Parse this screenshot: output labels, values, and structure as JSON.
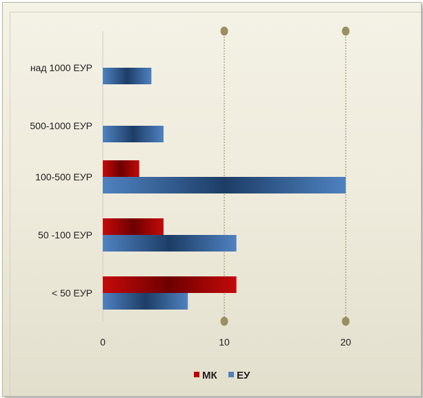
{
  "chart_data": {
    "type": "bar",
    "orientation": "horizontal",
    "categories": [
      "над 1000 ЕУР",
      "500-1000 ЕУР",
      "100-500 ЕУР",
      "50 -100 ЕУР",
      "< 50 ЕУР"
    ],
    "series": [
      {
        "name": "МК",
        "values": [
          0,
          0,
          3,
          5,
          11
        ],
        "color": "#c00000"
      },
      {
        "name": "ЕУ",
        "values": [
          4,
          5,
          20,
          11,
          7
        ],
        "color": "#4f81bd"
      }
    ],
    "x_ticks": [
      "0",
      "10",
      "20"
    ],
    "xlim": [
      0,
      20
    ],
    "grid": true,
    "legend_position": "bottom"
  }
}
